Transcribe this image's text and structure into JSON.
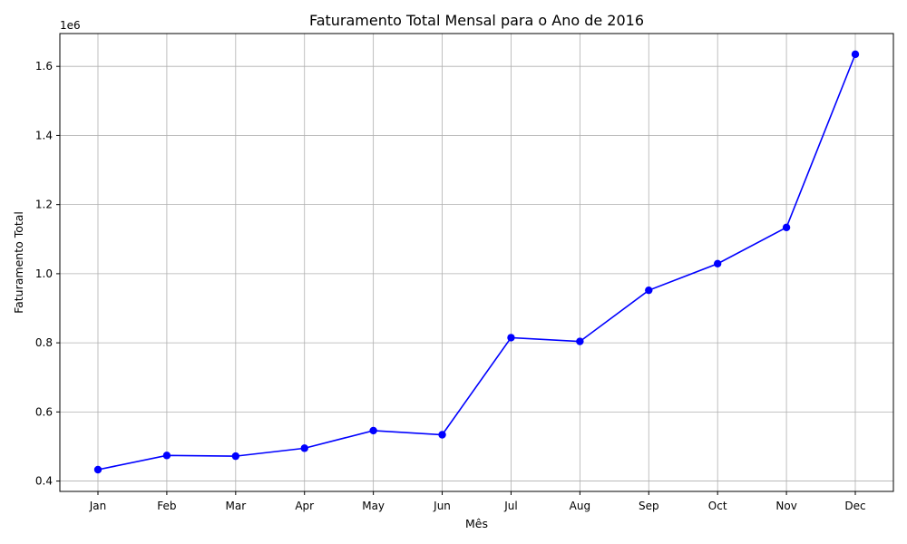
{
  "chart_data": {
    "type": "line",
    "title": "Faturamento Total Mensal para o Ano de 2016",
    "xlabel": "Mês",
    "ylabel": "Faturamento Total",
    "y_offset_label": "1e6",
    "categories": [
      "Jan",
      "Feb",
      "Mar",
      "Apr",
      "May",
      "Jun",
      "Jul",
      "Aug",
      "Sep",
      "Oct",
      "Nov",
      "Dec"
    ],
    "series": [
      {
        "values": [
          433000,
          474000,
          472000,
          495000,
          546000,
          534000,
          815000,
          804000,
          952000,
          1029000,
          1134000,
          1635000
        ],
        "color": "#0000ff"
      }
    ],
    "ylim": [
      370000,
      1695000
    ],
    "yticks": [
      400000,
      600000,
      800000,
      1000000,
      1200000,
      1400000,
      1600000
    ],
    "ytick_labels": [
      "0.4",
      "0.6",
      "0.8",
      "1.0",
      "1.2",
      "1.4",
      "1.6"
    ],
    "grid": true,
    "marker": "circle"
  }
}
